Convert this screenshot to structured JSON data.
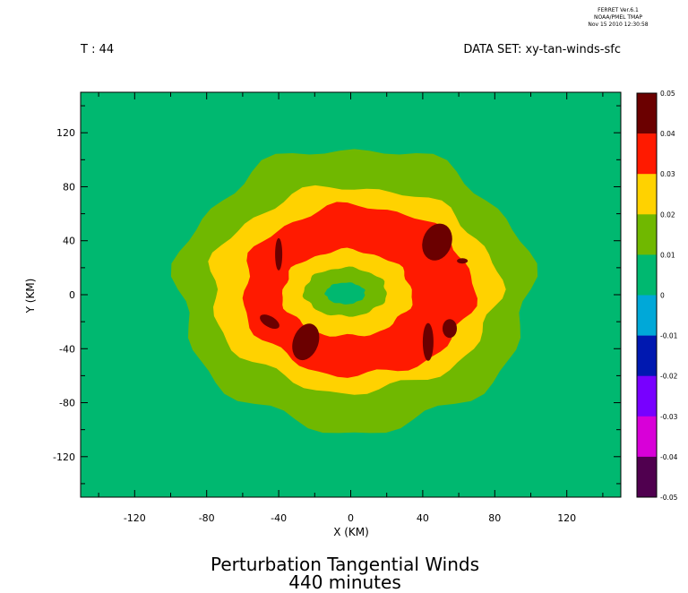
{
  "header": {
    "software": "FERRET Ver.6.1",
    "org": "NOAA/PMEL TMAP",
    "timestamp": "Nov 15 2010 12:30:58",
    "time_label": "T : 44",
    "dataset_label": "DATA SET: xy-tan-winds-sfc"
  },
  "chart_data": {
    "type": "heatmap",
    "title": "Perturbation Tangential Winds",
    "subtitle": "440 minutes",
    "xlabel": "X (KM)",
    "ylabel": "Y (KM)",
    "xlim": [
      -150,
      150
    ],
    "ylim": [
      -150,
      150
    ],
    "x_ticks": [
      "-120",
      "-80",
      "-40",
      "0",
      "40",
      "80",
      "120"
    ],
    "y_ticks": [
      "120",
      "80",
      "40",
      "0",
      "-40",
      "-80",
      "-120"
    ],
    "colorbar": {
      "levels": [
        "0.05",
        "0.04",
        "0.03",
        "0.02",
        "0.01",
        "0",
        "-0.01",
        "-0.02",
        "-0.03",
        "-0.04",
        "-0.05"
      ],
      "colors": [
        "#6b0000",
        "#ff1a00",
        "#ffd200",
        "#70b800",
        "#00b870",
        "#00a8d8",
        "#0018b0",
        "#7800ff",
        "#d800d8",
        "#50004f"
      ]
    },
    "contours": [
      {
        "level_color": "#70b800",
        "rx": 98,
        "ry": 105,
        "cx": 2,
        "cy": 4
      },
      {
        "level_color": "#ffd200",
        "rx": 80,
        "ry": 76,
        "cx": 2,
        "cy": 4
      },
      {
        "level_color": "#ff1a00",
        "rx": 64,
        "ry": 63,
        "cx": 4,
        "cy": 3
      },
      {
        "level_color": "#ffd200",
        "rx": 36,
        "ry": 32,
        "cx": -2,
        "cy": 1
      },
      {
        "level_color": "#70b800",
        "rx": 23,
        "ry": 18,
        "cx": -3,
        "cy": 2
      },
      {
        "level_color": "#00b870",
        "rx": 11,
        "ry": 8,
        "cx": -3,
        "cy": 1
      }
    ],
    "maxima": [
      {
        "x": 48,
        "y": 39,
        "rx": 8,
        "ry": 14,
        "rot": 20
      },
      {
        "x": 62,
        "y": 25,
        "rx": 3,
        "ry": 2,
        "rot": 0
      },
      {
        "x": 55,
        "y": -25,
        "rx": 4,
        "ry": 7,
        "rot": 0
      },
      {
        "x": 43,
        "y": -35,
        "rx": 3,
        "ry": 14,
        "rot": 0
      },
      {
        "x": -45,
        "y": -20,
        "rx": 6,
        "ry": 4,
        "rot": 30
      },
      {
        "x": -25,
        "y": -35,
        "rx": 7,
        "ry": 14,
        "rot": 20
      },
      {
        "x": -40,
        "y": 30,
        "rx": 2,
        "ry": 12,
        "rot": 0
      }
    ]
  }
}
